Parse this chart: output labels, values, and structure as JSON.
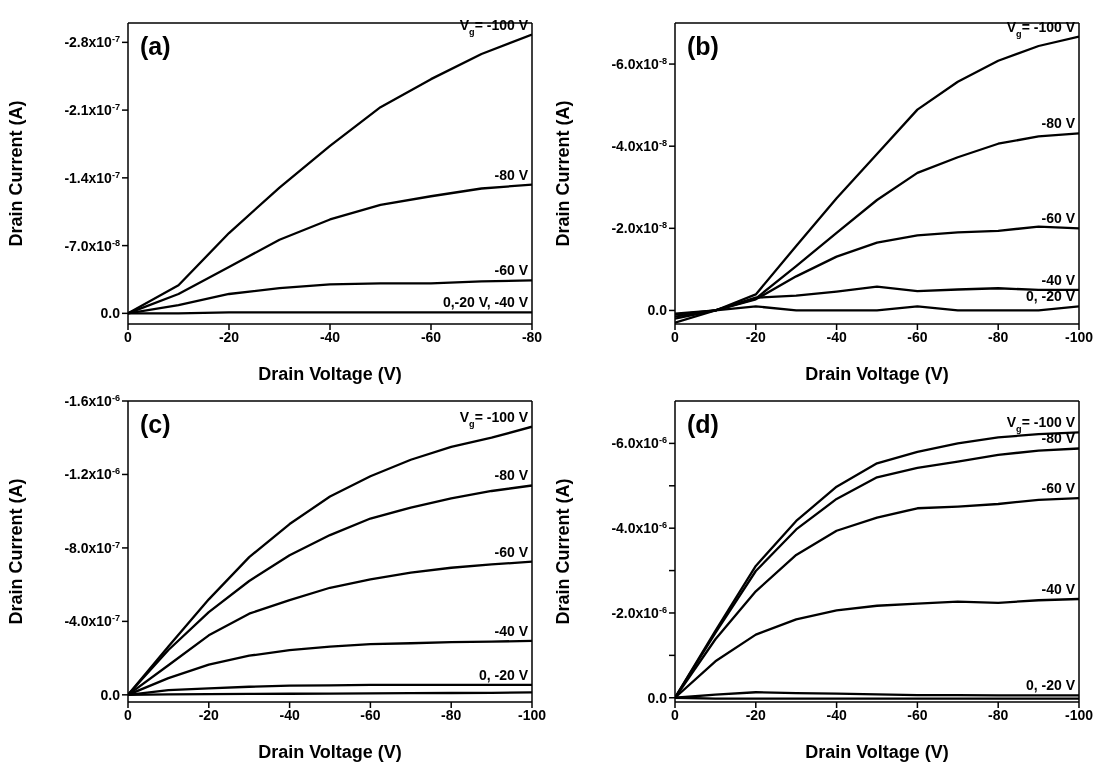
{
  "chart_data": [
    {
      "type": "line",
      "annotations": [
        "(a)"
      ],
      "xlabel": "Drain Voltage (V)",
      "ylabel": "Drain Current (A)",
      "x": [
        0,
        -10,
        -20,
        -30,
        -40,
        -50,
        -60,
        -70,
        -80
      ],
      "xlim": [
        0,
        -80
      ],
      "xticks": [
        0,
        -20,
        -40,
        -60,
        -80
      ],
      "ylim": [
        1.1e-08,
        -3e-07
      ],
      "yticks": [
        {
          "value": 0,
          "label": "0.0"
        },
        {
          "value": -7e-08,
          "label": "-7.0x10$^{-8}$"
        },
        {
          "value": -1.4e-07,
          "label": "-1.4x10$^{-7}$"
        },
        {
          "value": -2.1e-07,
          "label": "-2.1x10$^{-7}$"
        },
        {
          "value": -2.8e-07,
          "label": "-2.8x10$^{-7}$"
        }
      ],
      "series": [
        {
          "name": "V$_{g}$= -100 V",
          "color": "#000000",
          "values": [
            0,
            -2.9e-08,
            -8.3e-08,
            -1.3e-07,
            -1.73e-07,
            -2.13e-07,
            -2.42e-07,
            -2.68e-07,
            -2.88e-07
          ]
        },
        {
          "name": "-80 V",
          "color": "#000000",
          "values": [
            0,
            -2e-08,
            -4.8e-08,
            -7.6e-08,
            -9.7e-08,
            -1.12e-07,
            -1.21e-07,
            -1.29e-07,
            -1.33e-07
          ]
        },
        {
          "name": "-60 V",
          "color": "#000000",
          "values": [
            0,
            -8.5e-09,
            -2e-08,
            -2.6e-08,
            -3e-08,
            -3.1e-08,
            -3.1e-08,
            -3.3e-08,
            -3.4e-08
          ]
        },
        {
          "name": "0,-20 V, -40 V",
          "color": "#000000",
          "values": [
            0,
            0,
            -1e-09,
            -1e-09,
            -1e-09,
            -1e-09,
            -1e-09,
            -1e-09,
            -1e-09
          ]
        }
      ]
    },
    {
      "type": "line",
      "annotations": [
        "(b)"
      ],
      "xlabel": "Drain Voltage (V)",
      "ylabel": "Drain Current (A)",
      "x": [
        0,
        -10,
        -20,
        -30,
        -40,
        -50,
        -60,
        -70,
        -80,
        -90,
        -100
      ],
      "xlim": [
        0,
        -100
      ],
      "xticks": [
        0,
        -20,
        -40,
        -60,
        -80,
        -100
      ],
      "ylim": [
        3.3e-09,
        -7e-08
      ],
      "yticks": [
        {
          "value": 0,
          "label": "0.0"
        },
        {
          "value": -2e-08,
          "label": "-2.0x10$^{-8}$"
        },
        {
          "value": -4e-08,
          "label": "-4.0x10$^{-8}$"
        },
        {
          "value": -6e-08,
          "label": "-6.0x10$^{-8}$"
        }
      ],
      "series": [
        {
          "name": "V$_{g}$= -100 V",
          "color": "#000000",
          "values": [
            3e-09,
            0,
            -3.9e-09,
            -1.57e-08,
            -2.73e-08,
            -3.81e-08,
            -4.89e-08,
            -5.57e-08,
            -6.08e-08,
            -6.44e-08,
            -6.67e-08
          ]
        },
        {
          "name": "-80 V",
          "color": "#000000",
          "values": [
            2e-09,
            0,
            -2.9e-09,
            -1.08e-08,
            -1.89e-08,
            -2.69e-08,
            -3.35e-08,
            -3.73e-08,
            -4.06e-08,
            -4.24e-08,
            -4.31e-08
          ]
        },
        {
          "name": "-60 V",
          "color": "#000000",
          "values": [
            1.5e-09,
            0,
            -2.7e-09,
            -8.3e-09,
            -1.31e-08,
            -1.65e-08,
            -1.83e-08,
            -1.9e-08,
            -1.94e-08,
            -2.04e-08,
            -2e-08
          ]
        },
        {
          "name": "-40 V",
          "color": "#000000",
          "values": [
            8e-10,
            0,
            -3.1e-09,
            -3.6e-09,
            -4.6e-09,
            -5.8e-09,
            -4.7e-09,
            -5.1e-09,
            -5.4e-09,
            -5e-09,
            -5e-09
          ]
        },
        {
          "name": "0, -20 V",
          "color": "#000000",
          "values": [
            1e-09,
            0,
            -1e-09,
            0,
            0,
            0,
            -1e-09,
            0,
            0,
            0,
            -1e-09
          ]
        }
      ]
    },
    {
      "type": "line",
      "annotations": [
        "(c)"
      ],
      "xlabel": "Drain Voltage (V)",
      "ylabel": "Drain Current (A)",
      "x": [
        0,
        -10,
        -20,
        -30,
        -40,
        -50,
        -60,
        -70,
        -80,
        -90,
        -100
      ],
      "xlim": [
        0,
        -100
      ],
      "xticks": [
        0,
        -20,
        -40,
        -60,
        -80,
        -100
      ],
      "ylim": [
        3.9e-08,
        -1.6e-06
      ],
      "yticks": [
        {
          "value": 0,
          "label": "0.0"
        },
        {
          "value": -4e-07,
          "label": "-4.0x10$^{-7}$"
        },
        {
          "value": -8e-07,
          "label": "-8.0x10$^{-7}$"
        },
        {
          "value": -1.2e-06,
          "label": "-1.2x10$^{-6}$"
        },
        {
          "value": -1.6e-06,
          "label": "-1.6x10$^{-6}$"
        }
      ],
      "series": [
        {
          "name": "V$_{g}$= -100 V",
          "color": "#000000",
          "values": [
            0,
            -2.63e-07,
            -5.2e-07,
            -7.5e-07,
            -9.3e-07,
            -1.08e-06,
            -1.19e-06,
            -1.28e-06,
            -1.35e-06,
            -1.4e-06,
            -1.46e-06
          ]
        },
        {
          "name": "-80 V",
          "color": "#000000",
          "values": [
            0,
            -2.44e-07,
            -4.5e-07,
            -6.2e-07,
            -7.6e-07,
            -8.7e-07,
            -9.6e-07,
            -1.02e-06,
            -1.07e-06,
            -1.11e-06,
            -1.14e-06
          ]
        },
        {
          "name": "-60 V",
          "color": "#000000",
          "values": [
            0,
            -1.61e-07,
            -3.24e-07,
            -4.42e-07,
            -5.16e-07,
            -5.83e-07,
            -6.29e-07,
            -6.66e-07,
            -6.92e-07,
            -7.1e-07,
            -7.25e-07
          ]
        },
        {
          "name": "-40 V",
          "color": "#000000",
          "values": [
            0,
            -9.1e-08,
            -1.65e-07,
            -2.13e-07,
            -2.44e-07,
            -2.63e-07,
            -2.76e-07,
            -2.81e-07,
            -2.87e-07,
            -2.9e-07,
            -2.94e-07
          ]
        },
        {
          "name": "0, -20 V",
          "color": "#000000",
          "values": [
            0,
            -2.6e-08,
            -3.5e-08,
            -4.4e-08,
            -5e-08,
            -5.2e-08,
            -5.4e-08,
            -5.4e-08,
            -5.4e-08,
            -5.4e-08,
            -5.4e-08
          ]
        },
        {
          "color": "#000000",
          "values": [
            0,
            -2e-09,
            -4e-09,
            -5e-09,
            -6e-09,
            -7e-09,
            -8e-09,
            -9e-09,
            -1e-08,
            -1.1e-08,
            -1.3e-08
          ]
        }
      ]
    },
    {
      "type": "line",
      "annotations": [
        "(d)"
      ],
      "xlabel": "Drain Voltage (V)",
      "ylabel": "Drain Current (A)",
      "x": [
        0,
        -10,
        -20,
        -30,
        -40,
        -50,
        -60,
        -70,
        -80,
        -90,
        -100
      ],
      "xlim": [
        0,
        -100
      ],
      "xticks": [
        0,
        -20,
        -40,
        -60,
        -80,
        -100
      ],
      "ylim": [
        1e-07,
        -7e-06
      ],
      "yticks": [
        {
          "value": 0,
          "label": "0.0"
        },
        {
          "value": -1e-06,
          "label": null
        },
        {
          "value": -2e-06,
          "label": "-2.0x10$^{-6}$"
        },
        {
          "value": -3e-06,
          "label": null
        },
        {
          "value": -4e-06,
          "label": "-4.0x10$^{-6}$"
        },
        {
          "value": -5e-06,
          "label": null
        },
        {
          "value": -6e-06,
          "label": "-6.0x10$^{-6}$"
        }
      ],
      "series": [
        {
          "name": "V$_{g}$= -100 V",
          "color": "#000000",
          "values": [
            0,
            -1.58e-06,
            -3.11e-06,
            -4.17e-06,
            -4.98e-06,
            -5.53e-06,
            -5.8e-06,
            -6e-06,
            -6.14e-06,
            -6.22e-06,
            -6.26e-06
          ]
        },
        {
          "name": "-80 V",
          "color": "#000000",
          "values": [
            0,
            -1.53e-06,
            -2.99e-06,
            -3.97e-06,
            -4.69e-06,
            -5.2e-06,
            -5.42e-06,
            -5.57e-06,
            -5.73e-06,
            -5.83e-06,
            -5.88e-06
          ]
        },
        {
          "name": "-60 V",
          "color": "#000000",
          "values": [
            0,
            -1.38e-06,
            -2.51e-06,
            -3.37e-06,
            -3.94e-06,
            -4.25e-06,
            -4.47e-06,
            -4.51e-06,
            -4.57e-06,
            -4.67e-06,
            -4.71e-06
          ]
        },
        {
          "name": "-40 V",
          "color": "#000000",
          "values": [
            0,
            -8.6e-07,
            -1.49e-06,
            -1.85e-06,
            -2.06e-06,
            -2.17e-06,
            -2.22e-06,
            -2.27e-06,
            -2.24e-06,
            -2.3e-06,
            -2.33e-06
          ]
        },
        {
          "name": "0, -20 V",
          "color": "#000000",
          "values": [
            0,
            -7.2e-08,
            -1.3e-07,
            -1.1e-07,
            -9.6e-08,
            -8e-08,
            -6.4e-08,
            -6e-08,
            -5.6e-08,
            -5.6e-08,
            -5.6e-08
          ]
        },
        {
          "color": "#000000",
          "values": [
            0,
            2e-08,
            2e-08,
            2e-08,
            2e-08,
            2e-08,
            2e-08,
            2e-08,
            2e-08,
            2e-08,
            2e-08
          ]
        }
      ]
    }
  ]
}
